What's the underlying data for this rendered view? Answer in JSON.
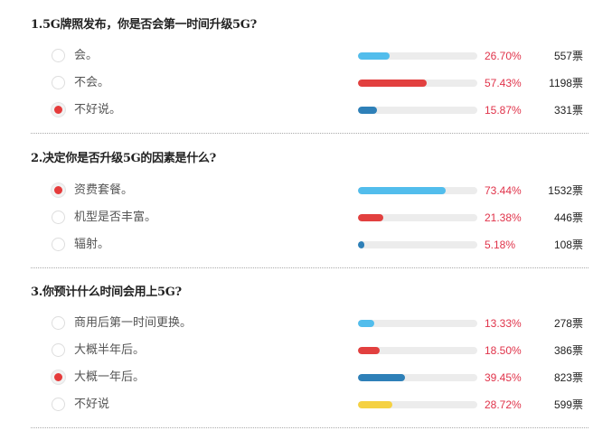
{
  "vote_unit": "票",
  "questions": [
    {
      "title": "1.5G牌照发布，你是否会第一时间升级5G?",
      "options": [
        {
          "label": "会。",
          "percent": "26.70%",
          "value": 26.7,
          "votes": "557",
          "color": "#52bdec",
          "selected": false
        },
        {
          "label": "不会。",
          "percent": "57.43%",
          "value": 57.43,
          "votes": "1198",
          "color": "#e2403f",
          "selected": false
        },
        {
          "label": "不好说。",
          "percent": "15.87%",
          "value": 15.87,
          "votes": "331",
          "color": "#2e80b8",
          "selected": true
        }
      ]
    },
    {
      "title": "2.决定你是否升级5G的因素是什么?",
      "options": [
        {
          "label": "资费套餐。",
          "percent": "73.44%",
          "value": 73.44,
          "votes": "1532",
          "color": "#52bdec",
          "selected": true
        },
        {
          "label": "机型是否丰富。",
          "percent": "21.38%",
          "value": 21.38,
          "votes": "446",
          "color": "#e2403f",
          "selected": false
        },
        {
          "label": "辐射。",
          "percent": "5.18%",
          "value": 5.18,
          "votes": "108",
          "color": "#2e80b8",
          "selected": false
        }
      ]
    },
    {
      "title": "3.你预计什么时间会用上5G?",
      "options": [
        {
          "label": "商用后第一时间更换。",
          "percent": "13.33%",
          "value": 13.33,
          "votes": "278",
          "color": "#52bdec",
          "selected": false
        },
        {
          "label": "大概半年后。",
          "percent": "18.50%",
          "value": 18.5,
          "votes": "386",
          "color": "#e2403f",
          "selected": false
        },
        {
          "label": "大概一年后。",
          "percent": "39.45%",
          "value": 39.45,
          "votes": "823",
          "color": "#2e80b8",
          "selected": true
        },
        {
          "label": "不好说",
          "percent": "28.72%",
          "value": 28.72,
          "votes": "599",
          "color": "#f5d142",
          "selected": false
        }
      ]
    }
  ]
}
